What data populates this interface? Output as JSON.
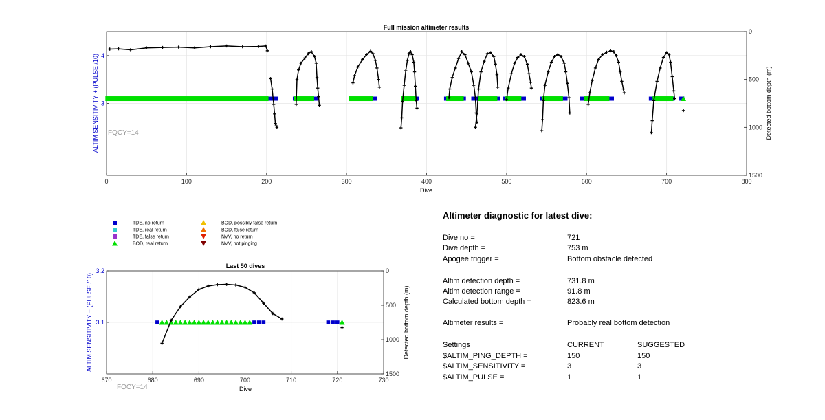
{
  "top_chart": {
    "title": "Full mission altimeter results",
    "xlabel": "Dive",
    "ylabel_left": "ALTIM SENSITIVITY + (PULSE /10)",
    "ylabel_right": "Detected bottom depth (m)",
    "fqcy_label": "FQCY=14",
    "x_ticks": [
      "0",
      "100",
      "200",
      "300",
      "400",
      "500",
      "600",
      "700",
      "800"
    ],
    "y_left_ticks": [
      "3",
      "4"
    ],
    "y_right_ticks": [
      "0",
      "500",
      "1000",
      "1500"
    ]
  },
  "bottom_chart": {
    "title": "Last 50 dives",
    "xlabel": "Dive",
    "ylabel_left": "ALTIM SENSITIVITY + (PULSE /10)",
    "ylabel_right": "Detected bottom depth (m)",
    "fqcy_label": "FQCY=14",
    "x_ticks": [
      "670",
      "680",
      "690",
      "700",
      "710",
      "720",
      "730"
    ],
    "y_left_ticks": [
      "3.1",
      "3.2"
    ],
    "y_right_ticks": [
      "0",
      "500",
      "1000",
      "1500"
    ]
  },
  "legend": {
    "items": [
      {
        "label": "TDE, no return",
        "color": "#0000cc",
        "shape": "square"
      },
      {
        "label": "TDE, real return",
        "color": "#33cccc",
        "shape": "square"
      },
      {
        "label": "TDE, false return",
        "color": "#9933cc",
        "shape": "square"
      },
      {
        "label": "BOD, real return",
        "color": "#00e000",
        "shape": "triangle-up"
      },
      {
        "label": "BOD, possibly false return",
        "color": "#f0c000",
        "shape": "triangle-up"
      },
      {
        "label": "BOD, false return",
        "color": "#f07000",
        "shape": "triangle-up"
      },
      {
        "label": "NVV, no return",
        "color": "#e02000",
        "shape": "triangle-down"
      },
      {
        "label": "NVV, not pinging",
        "color": "#800000",
        "shape": "triangle-down"
      }
    ]
  },
  "diagnostic": {
    "title": "Altimeter diagnostic for latest dive:",
    "dive_no_label": "Dive no =",
    "dive_no_value": "721",
    "dive_depth_label": "Dive depth =",
    "dive_depth_value": "753 m",
    "apogee_label": "Apogee trigger =",
    "apogee_value": "Bottom obstacle detected",
    "altim_depth_label": "Altim detection depth =",
    "altim_depth_value": "731.8 m",
    "altim_range_label": "Altim detection range =",
    "altim_range_value": "91.8 m",
    "calc_depth_label": "Calculated bottom depth =",
    "calc_depth_value": "823.6 m",
    "results_label": "Altimeter results =",
    "results_value": "Probably real bottom detection",
    "settings_label": "Settings",
    "current_header": "CURRENT",
    "suggested_header": "SUGGESTED",
    "ping_depth_label": "$ALTIM_PING_DEPTH =",
    "ping_depth_current": "150",
    "ping_depth_suggested": "150",
    "sensitivity_label": "$ALTIM_SENSITIVITY =",
    "sensitivity_current": "3",
    "sensitivity_suggested": "3",
    "pulse_label": "$ALTIM_PULSE =",
    "pulse_current": "1",
    "pulse_suggested": "1"
  },
  "chart_data": [
    {
      "type": "scatter",
      "title": "Full mission altimeter results",
      "xlabel": "Dive",
      "ylabel": "ALTIM SENSITIVITY + (PULSE /10)",
      "y2label": "Detected bottom depth (m)",
      "xlim": [
        0,
        800
      ],
      "ylim": [
        1.5,
        4.5
      ],
      "y2lim": [
        0,
        1500
      ],
      "y2_reversed": true,
      "grid": true,
      "setting_series": {
        "y": 3.1,
        "tde_no_return_segments": [
          [
            1,
            2
          ],
          [
            199,
            212
          ],
          [
            235,
            238
          ],
          [
            256,
            262
          ],
          [
            330,
            336
          ],
          [
            370,
            372
          ],
          [
            383,
            388
          ],
          [
            424,
            428
          ],
          [
            443,
            447
          ],
          [
            458,
            468
          ],
          [
            485,
            490
          ],
          [
            498,
            502
          ],
          [
            515,
            522
          ],
          [
            544,
            548
          ],
          [
            567,
            574
          ],
          [
            594,
            600
          ],
          [
            625,
            632
          ],
          [
            680,
            686
          ],
          [
            705,
            708
          ],
          [
            718,
            720
          ]
        ],
        "bod_real_return_segments": [
          [
            2,
            199
          ],
          [
            238,
            256
          ],
          [
            306,
            330
          ],
          [
            372,
            383
          ],
          [
            428,
            443
          ],
          [
            468,
            485
          ],
          [
            502,
            515
          ],
          [
            548,
            567
          ],
          [
            600,
            625
          ],
          [
            686,
            705
          ],
          [
            721,
            721
          ]
        ]
      },
      "depth_series": [
        {
          "name": "",
          "points": [
            [
              4,
              183
            ],
            [
              15,
              180
            ],
            [
              30,
              190
            ],
            [
              50,
              170
            ],
            [
              70,
              166
            ],
            [
              90,
              162
            ],
            [
              110,
              170
            ],
            [
              130,
              158
            ],
            [
              150,
              150
            ],
            [
              170,
              158
            ],
            [
              190,
              155
            ],
            [
              199,
              150
            ],
            [
              201,
              200
            ]
          ]
        },
        {
          "name": "",
          "points": [
            [
              205,
              490
            ],
            [
              207,
              600
            ],
            [
              209,
              760
            ],
            [
              210,
              860
            ],
            [
              211,
              960
            ],
            [
              212,
              985
            ],
            [
              213,
              1000
            ]
          ]
        },
        {
          "name": "",
          "points": [
            [
              237,
              760
            ],
            [
              238,
              500
            ],
            [
              240,
              400
            ],
            [
              243,
              330
            ],
            [
              248,
              275
            ],
            [
              252,
              230
            ],
            [
              256,
              210
            ],
            [
              260,
              260
            ],
            [
              262,
              330
            ],
            [
              263,
              480
            ],
            [
              264,
              590
            ],
            [
              265,
              680
            ],
            [
              266,
              770
            ]
          ]
        },
        {
          "name": "",
          "points": [
            [
              308,
              535
            ],
            [
              310,
              460
            ],
            [
              314,
              370
            ],
            [
              320,
              290
            ],
            [
              325,
              240
            ],
            [
              330,
              205
            ],
            [
              333,
              230
            ],
            [
              336,
              300
            ],
            [
              338,
              380
            ],
            [
              340,
              500
            ],
            [
              341,
              580
            ]
          ]
        },
        {
          "name": "",
          "points": [
            [
              368,
              1005
            ],
            [
              369,
              900
            ],
            [
              370,
              730
            ],
            [
              372,
              560
            ],
            [
              374,
              410
            ],
            [
              376,
              300
            ],
            [
              378,
              230
            ],
            [
              380,
              210
            ],
            [
              382,
              240
            ],
            [
              384,
              320
            ],
            [
              385,
              420
            ],
            [
              386,
              570
            ],
            [
              387,
              720
            ],
            [
              388,
              800
            ]
          ]
        },
        {
          "name": "",
          "points": [
            [
              428,
              690
            ],
            [
              429,
              600
            ],
            [
              432,
              480
            ],
            [
              436,
              380
            ],
            [
              440,
              280
            ],
            [
              444,
              210
            ],
            [
              448,
              240
            ],
            [
              452,
              330
            ],
            [
              456,
              420
            ],
            [
              459,
              560
            ],
            [
              461,
              690
            ],
            [
              462,
              850
            ],
            [
              463,
              950
            ]
          ]
        },
        {
          "name": "",
          "points": [
            [
              461,
              1000
            ],
            [
              463,
              860
            ],
            [
              465,
              600
            ],
            [
              468,
              420
            ],
            [
              472,
              310
            ],
            [
              476,
              230
            ],
            [
              480,
              220
            ],
            [
              484,
              260
            ],
            [
              486,
              340
            ],
            [
              488,
              450
            ],
            [
              489,
              580
            ]
          ]
        },
        {
          "name": "",
          "points": [
            [
              500,
              710
            ],
            [
              502,
              590
            ],
            [
              506,
              440
            ],
            [
              510,
              330
            ],
            [
              514,
              270
            ],
            [
              518,
              240
            ],
            [
              522,
              260
            ],
            [
              526,
              340
            ],
            [
              528,
              440
            ],
            [
              530,
              530
            ],
            [
              531,
              590
            ]
          ]
        },
        {
          "name": "",
          "points": [
            [
              544,
              1035
            ],
            [
              545,
              920
            ],
            [
              546,
              720
            ],
            [
              548,
              560
            ],
            [
              552,
              420
            ],
            [
              556,
              320
            ],
            [
              560,
              260
            ],
            [
              564,
              240
            ],
            [
              568,
              260
            ],
            [
              572,
              330
            ],
            [
              574,
              420
            ],
            [
              576,
              540
            ],
            [
              578,
              690
            ],
            [
              579,
              850
            ]
          ]
        },
        {
          "name": "",
          "points": [
            [
              602,
              760
            ],
            [
              604,
              640
            ],
            [
              607,
              510
            ],
            [
              611,
              380
            ],
            [
              615,
              290
            ],
            [
              620,
              240
            ],
            [
              625,
              215
            ],
            [
              630,
              200
            ],
            [
              634,
              210
            ],
            [
              637,
              250
            ],
            [
              640,
              320
            ],
            [
              642,
              420
            ],
            [
              644,
              520
            ],
            [
              646,
              600
            ],
            [
              647,
              640
            ]
          ]
        },
        {
          "name": "",
          "points": [
            [
              681,
              1055
            ],
            [
              682,
              930
            ],
            [
              684,
              720
            ],
            [
              688,
              520
            ],
            [
              692,
              380
            ],
            [
              696,
              270
            ],
            [
              700,
              220
            ],
            [
              703,
              240
            ],
            [
              705,
              320
            ],
            [
              707,
              470
            ],
            [
              709,
              620
            ],
            [
              710,
              700
            ]
          ]
        },
        {
          "name": "",
          "points": [
            [
              721,
              825
            ]
          ]
        }
      ]
    },
    {
      "type": "scatter",
      "title": "Last 50 dives",
      "xlabel": "Dive",
      "ylabel": "ALTIM SENSITIVITY + (PULSE /10)",
      "y2label": "Detected bottom depth (m)",
      "xlim": [
        670,
        730
      ],
      "ylim": [
        3.0,
        3.2
      ],
      "y2lim": [
        0,
        1500
      ],
      "y2_reversed": true,
      "grid": true,
      "setting_y": 3.1,
      "tde_no_return_dives": [
        681,
        702,
        703,
        704,
        718,
        719,
        720
      ],
      "bod_real_return_dives": [
        682,
        683,
        684,
        685,
        686,
        687,
        688,
        689,
        690,
        691,
        692,
        693,
        694,
        695,
        696,
        697,
        698,
        699,
        700,
        701,
        721
      ],
      "depth_points": [
        [
          682,
          1055
        ],
        [
          684,
          720
        ],
        [
          686,
          520
        ],
        [
          688,
          380
        ],
        [
          690,
          270
        ],
        [
          692,
          220
        ],
        [
          694,
          200
        ],
        [
          696,
          195
        ],
        [
          698,
          205
        ],
        [
          700,
          240
        ],
        [
          702,
          320
        ],
        [
          704,
          470
        ],
        [
          706,
          620
        ],
        [
          708,
          700
        ],
        [
          721,
          825
        ]
      ]
    }
  ]
}
